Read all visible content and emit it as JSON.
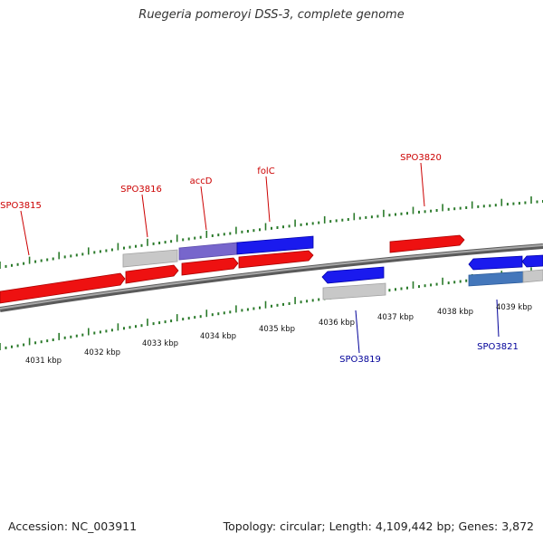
{
  "title": "Ruegeria pomeroyi DSS-3, complete genome",
  "footer": {
    "accession": "Accession: NC_003911",
    "summary": "Topology: circular; Length: 4,109,442 bp; Genes: 3,872"
  },
  "colors": {
    "forward_gene": "#ee1111",
    "reverse_gene": "#1a1aee",
    "reverse_gene_muted": "#7766cc",
    "reverse_gene_steel": "#4477bb",
    "pseudo_gene": "#c8c8c8",
    "tick": "#2a7a2a",
    "backbone": "#8a8a8a",
    "forward_label": "#cc0000",
    "reverse_label": "#000099"
  },
  "axis": {
    "unit": "kbp",
    "labels": [
      "4031 kbp",
      "4032 kbp",
      "4033 kbp",
      "4034 kbp",
      "4035 kbp",
      "4036 kbp",
      "4037 kbp",
      "4038 kbp",
      "4039 kbp"
    ]
  },
  "forward_labels": [
    "SPO3815",
    "SPO3816",
    "accD",
    "folC",
    "SPO3820"
  ],
  "reverse_labels": [
    "SPO3819",
    "SPO3821"
  ]
}
